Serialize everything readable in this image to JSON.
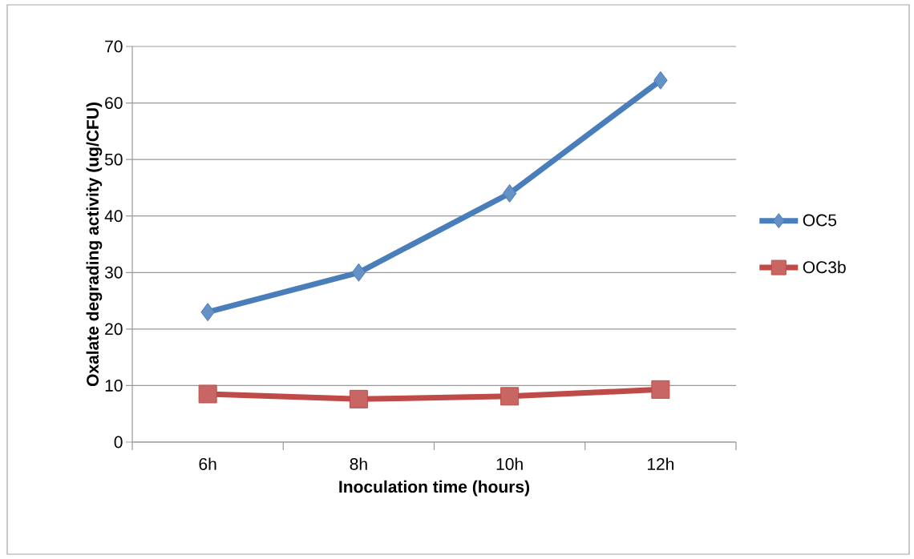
{
  "chart_data": {
    "type": "line",
    "xlabel": "Inoculation time (hours)",
    "ylabel": "Oxalate degrading activity (ug/CFU)",
    "categories": [
      "6h",
      "8h",
      "10h",
      "12h"
    ],
    "series": [
      {
        "name": "OC5",
        "color": "#4a7ebb",
        "marker": "diamond",
        "values": [
          23,
          30,
          44,
          64
        ]
      },
      {
        "name": "OC3b",
        "color": "#be4b48",
        "marker": "square",
        "values": [
          8.5,
          7.6,
          8.1,
          9.3
        ]
      }
    ],
    "ylim": [
      0,
      70
    ],
    "yticks": [
      0,
      10,
      20,
      30,
      40,
      50,
      60,
      70
    ],
    "grid": "y",
    "legend": "right"
  }
}
